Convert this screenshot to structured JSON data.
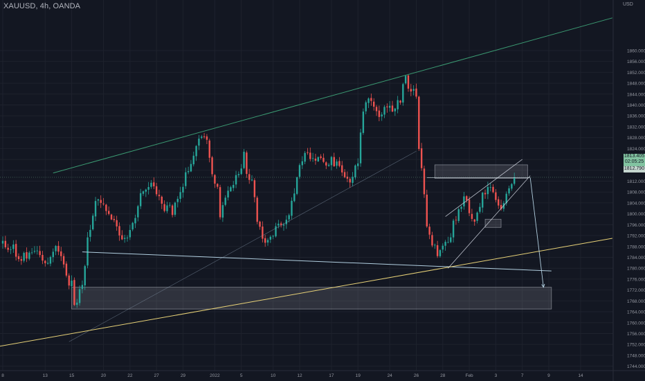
{
  "header": {
    "title": "XAUUSD, 4h, OANDA",
    "currency": "USD"
  },
  "price_axis": {
    "ticks": [
      "1860.000",
      "1856.000",
      "1852.000",
      "1848.000",
      "1844.000",
      "1840.000",
      "1836.000",
      "1832.000",
      "1828.000",
      "1824.000",
      "1820.000",
      "1816.000",
      "1812.000",
      "1808.000",
      "1804.000",
      "1800.000",
      "1796.000",
      "1792.000",
      "1788.000",
      "1784.000",
      "1780.000",
      "1776.000",
      "1772.000",
      "1768.000",
      "1764.000",
      "1760.000",
      "1756.000",
      "1752.000",
      "1748.000",
      "1744.000"
    ]
  },
  "time_axis": {
    "ticks": [
      "8",
      "13",
      "15",
      "20",
      "22",
      "27",
      "29",
      "2022",
      "5",
      "10",
      "12",
      "17",
      "19",
      "24",
      "26",
      "28",
      "Feb",
      "3",
      "7",
      "9",
      "14"
    ]
  },
  "price_badge": {
    "price": "1813.405",
    "countdown": "02:05:25",
    "level": "1812.790"
  },
  "colors": {
    "background": "#131722",
    "up": "#26a69a",
    "down": "#ef5350",
    "upper_channel": "#3b9a72",
    "support": "#e8d278",
    "drawing_lines": "#b2cfe0",
    "zones": "#9598a1",
    "grid": "#1e222d"
  },
  "chart_data": {
    "type": "candlestick",
    "symbol": "XAUUSD",
    "timeframe": "4h",
    "source": "OANDA",
    "ylim": [
      1742,
      1864
    ],
    "price_scale_ticks": [
      1744,
      1748,
      1752,
      1756,
      1760,
      1764,
      1768,
      1772,
      1776,
      1780,
      1784,
      1788,
      1792,
      1796,
      1800,
      1804,
      1808,
      1812,
      1816,
      1820,
      1824,
      1828,
      1832,
      1836,
      1840,
      1844,
      1848,
      1852,
      1856,
      1860
    ],
    "key_levels": {
      "last_price": 1813.405,
      "marked_level": 1812.79
    },
    "anchors": [
      {
        "label": "8",
        "bar": 0
      },
      {
        "label": "13",
        "bar": 16
      },
      {
        "label": "15",
        "bar": 26
      },
      {
        "label": "20",
        "bar": 38
      },
      {
        "label": "22",
        "bar": 48
      },
      {
        "label": "27",
        "bar": 58
      },
      {
        "label": "29",
        "bar": 68
      },
      {
        "label": "2022",
        "bar": 80
      },
      {
        "label": "5",
        "bar": 90
      },
      {
        "label": "10",
        "bar": 102
      },
      {
        "label": "12",
        "bar": 112
      },
      {
        "label": "17",
        "bar": 124
      },
      {
        "label": "19",
        "bar": 134
      },
      {
        "label": "24",
        "bar": 146
      },
      {
        "label": "26",
        "bar": 156
      },
      {
        "label": "28",
        "bar": 166
      },
      {
        "label": "Feb",
        "bar": 176
      },
      {
        "label": "3",
        "bar": 186
      },
      {
        "label": "7",
        "bar": 196
      },
      {
        "label": "9",
        "bar": 206
      },
      {
        "label": "14",
        "bar": 218
      }
    ],
    "path": [
      [
        0,
        1790
      ],
      [
        4,
        1787
      ],
      [
        7,
        1784
      ],
      [
        11,
        1785
      ],
      [
        14,
        1786
      ],
      [
        16,
        1782
      ],
      [
        18,
        1784
      ],
      [
        20,
        1788
      ],
      [
        22,
        1786
      ],
      [
        23,
        1782
      ],
      [
        24,
        1776
      ],
      [
        26,
        1774
      ],
      [
        27,
        1768
      ],
      [
        28,
        1769
      ],
      [
        30,
        1775
      ],
      [
        32,
        1790
      ],
      [
        34,
        1800
      ],
      [
        36,
        1806
      ],
      [
        38,
        1804
      ],
      [
        40,
        1799
      ],
      [
        42,
        1797
      ],
      [
        44,
        1793
      ],
      [
        46,
        1790
      ],
      [
        47,
        1791
      ],
      [
        49,
        1795
      ],
      [
        51,
        1803
      ],
      [
        53,
        1809
      ],
      [
        56,
        1811
      ],
      [
        58,
        1808
      ],
      [
        60,
        1803
      ],
      [
        62,
        1802
      ],
      [
        64,
        1801
      ],
      [
        66,
        1805
      ],
      [
        68,
        1811
      ],
      [
        70,
        1816
      ],
      [
        72,
        1823
      ],
      [
        74,
        1827
      ],
      [
        75,
        1828
      ],
      [
        77,
        1826
      ],
      [
        79,
        1815
      ],
      [
        81,
        1809
      ],
      [
        82,
        1798
      ],
      [
        84,
        1805
      ],
      [
        86,
        1810
      ],
      [
        88,
        1813
      ],
      [
        90,
        1818
      ],
      [
        91,
        1823
      ],
      [
        92,
        1815
      ],
      [
        94,
        1812
      ],
      [
        96,
        1798
      ],
      [
        98,
        1791
      ],
      [
        100,
        1790
      ],
      [
        102,
        1793
      ],
      [
        104,
        1797
      ],
      [
        106,
        1797
      ],
      [
        108,
        1801
      ],
      [
        110,
        1808
      ],
      [
        112,
        1818
      ],
      [
        115,
        1823
      ],
      [
        117,
        1820
      ],
      [
        119,
        1822
      ],
      [
        121,
        1818
      ],
      [
        122,
        1816
      ],
      [
        124,
        1820
      ],
      [
        126,
        1818
      ],
      [
        128,
        1815
      ],
      [
        130,
        1812
      ],
      [
        132,
        1813
      ],
      [
        134,
        1820
      ],
      [
        136,
        1838
      ],
      [
        138,
        1843
      ],
      [
        141,
        1837
      ],
      [
        143,
        1837
      ],
      [
        145,
        1839
      ],
      [
        148,
        1838
      ],
      [
        150,
        1842
      ],
      [
        152,
        1851
      ],
      [
        153,
        1847
      ],
      [
        155,
        1846
      ],
      [
        156,
        1842
      ],
      [
        157,
        1825
      ],
      [
        158,
        1816
      ],
      [
        159,
        1808
      ],
      [
        160,
        1796
      ],
      [
        161,
        1792
      ],
      [
        163,
        1788
      ],
      [
        164,
        1784
      ],
      [
        166,
        1789
      ],
      [
        168,
        1790
      ],
      [
        170,
        1796
      ],
      [
        172,
        1802
      ],
      [
        174,
        1806
      ],
      [
        176,
        1801
      ],
      [
        178,
        1798
      ],
      [
        179,
        1800
      ],
      [
        181,
        1807
      ],
      [
        183,
        1810
      ],
      [
        185,
        1808
      ],
      [
        187,
        1802
      ],
      [
        188,
        1803
      ],
      [
        190,
        1806
      ],
      [
        192,
        1810
      ],
      [
        193,
        1813.4
      ]
    ],
    "annotations": [
      {
        "type": "trendline",
        "name": "upper-channel",
        "from": [
          19,
          1815
        ],
        "to": [
          230,
          1872
        ]
      },
      {
        "type": "trendline",
        "name": "mid-channel",
        "from": [
          25,
          1753
        ],
        "to": [
          156,
          1823
        ]
      },
      {
        "type": "trendline",
        "name": "horizontal-support",
        "from": [
          30,
          1786
        ],
        "to": [
          207,
          1779
        ]
      },
      {
        "type": "trendline",
        "name": "long-support",
        "from": [
          -3,
          1751
        ],
        "to": [
          230,
          1791
        ]
      },
      {
        "type": "zone",
        "name": "demand-zone",
        "from": [
          26,
          1773
        ],
        "to": [
          207,
          1765
        ]
      },
      {
        "type": "zone",
        "name": "supply-zone",
        "from": [
          163,
          1818
        ],
        "to": [
          198,
          1813
        ]
      },
      {
        "type": "zone",
        "name": "small-zone",
        "from": [
          182,
          1798
        ],
        "to": [
          188,
          1795
        ]
      },
      {
        "type": "wedge",
        "name": "rising-wedge",
        "lines": [
          [
            [
              167,
              1799
            ],
            [
              196,
              1820
            ]
          ],
          [
            [
              168,
              1780
            ],
            [
              199,
              1814
            ]
          ]
        ]
      },
      {
        "type": "line",
        "name": "horizontal-level",
        "from": [
          160,
          1813.3
        ],
        "to": [
          199,
          1813.3
        ]
      },
      {
        "type": "arrow",
        "name": "projection-arrow",
        "from": [
          199,
          1813.3
        ],
        "to": [
          204,
          1773
        ]
      }
    ]
  }
}
